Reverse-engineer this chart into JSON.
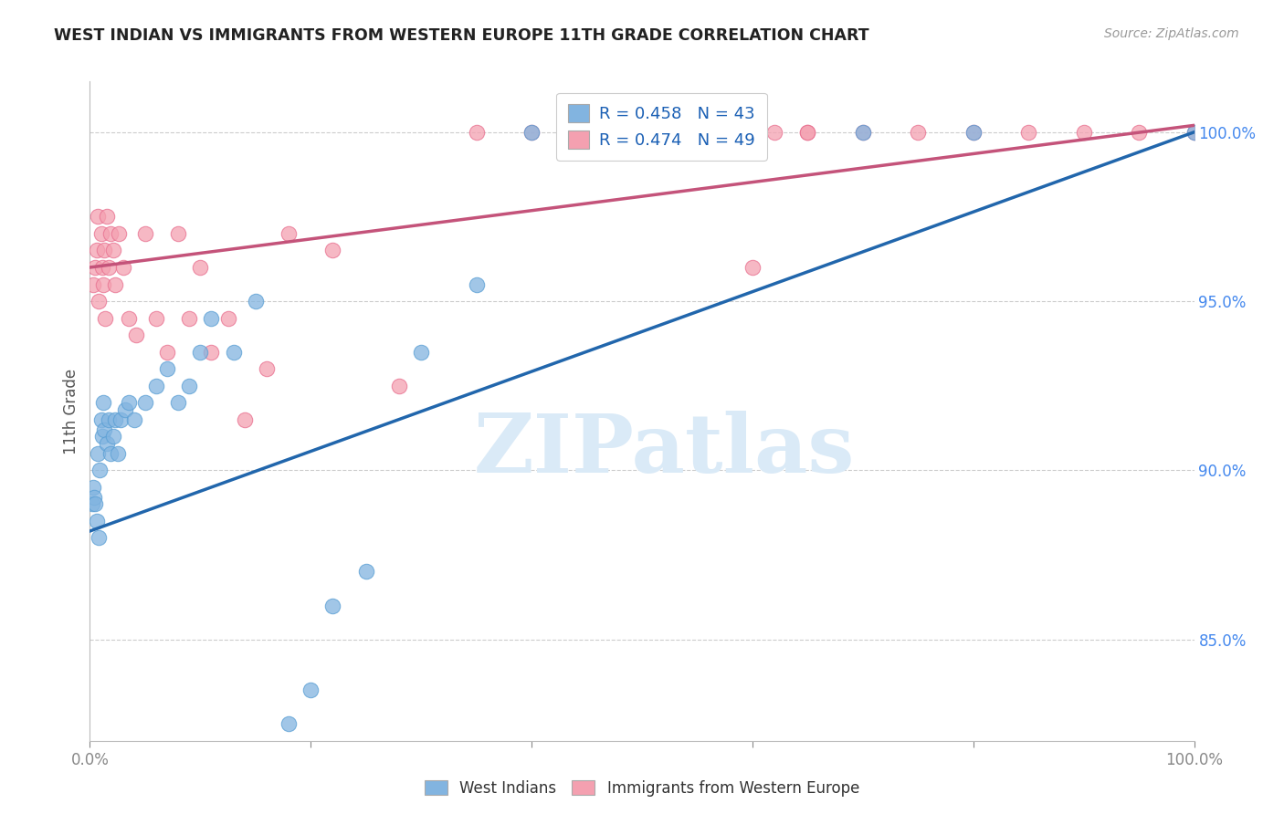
{
  "title": "WEST INDIAN VS IMMIGRANTS FROM WESTERN EUROPE 11TH GRADE CORRELATION CHART",
  "source": "Source: ZipAtlas.com",
  "ylabel": "11th Grade",
  "y_ticks": [
    85.0,
    90.0,
    95.0,
    100.0
  ],
  "y_tick_labels": [
    "85.0%",
    "90.0%",
    "95.0%",
    "100.0%"
  ],
  "x_range": [
    0.0,
    100.0
  ],
  "y_range": [
    82.0,
    101.5
  ],
  "blue_label": "West Indians",
  "pink_label": "Immigrants from Western Europe",
  "blue_R": 0.458,
  "blue_N": 43,
  "pink_R": 0.474,
  "pink_N": 49,
  "blue_color": "#82b4e0",
  "pink_color": "#f4a0b0",
  "blue_edge_color": "#5a9fd4",
  "pink_edge_color": "#e87090",
  "blue_line_color": "#2166ac",
  "pink_line_color": "#c4537a",
  "watermark_color": "#daeaf7",
  "blue_line_x0": 0.0,
  "blue_line_y0": 88.2,
  "blue_line_x1": 100.0,
  "blue_line_y1": 100.0,
  "pink_line_x0": 0.0,
  "pink_line_y0": 96.0,
  "pink_line_x1": 100.0,
  "pink_line_y1": 100.2,
  "blue_x": [
    0.2,
    0.3,
    0.4,
    0.5,
    0.6,
    0.7,
    0.8,
    0.9,
    1.0,
    1.1,
    1.2,
    1.3,
    1.5,
    1.7,
    1.9,
    2.1,
    2.3,
    2.5,
    2.8,
    3.2,
    3.5,
    4.0,
    5.0,
    6.0,
    7.0,
    8.0,
    9.0,
    10.0,
    11.0,
    13.0,
    15.0,
    18.0,
    20.0,
    22.0,
    25.0,
    30.0,
    35.0,
    40.0,
    50.0,
    60.0,
    70.0,
    80.0,
    100.0
  ],
  "blue_y": [
    89.0,
    89.5,
    89.2,
    89.0,
    88.5,
    90.5,
    88.0,
    90.0,
    91.5,
    91.0,
    92.0,
    91.2,
    90.8,
    91.5,
    90.5,
    91.0,
    91.5,
    90.5,
    91.5,
    91.8,
    92.0,
    91.5,
    92.0,
    92.5,
    93.0,
    92.0,
    92.5,
    93.5,
    94.5,
    93.5,
    95.0,
    82.5,
    83.5,
    86.0,
    87.0,
    93.5,
    95.5,
    100.0,
    100.0,
    100.0,
    100.0,
    100.0,
    100.0
  ],
  "pink_x": [
    0.3,
    0.5,
    0.6,
    0.7,
    0.8,
    1.0,
    1.1,
    1.2,
    1.3,
    1.4,
    1.5,
    1.7,
    1.9,
    2.1,
    2.3,
    2.6,
    3.0,
    3.5,
    4.2,
    5.0,
    6.0,
    7.0,
    8.0,
    9.0,
    10.0,
    11.0,
    12.5,
    14.0,
    16.0,
    18.0,
    22.0,
    28.0,
    35.0,
    40.0,
    45.0,
    50.0,
    55.0,
    60.0,
    65.0,
    70.0,
    75.0,
    80.0,
    85.0,
    90.0,
    95.0,
    100.0,
    60.0,
    65.0,
    62.0
  ],
  "pink_y": [
    95.5,
    96.0,
    96.5,
    97.5,
    95.0,
    97.0,
    96.0,
    95.5,
    96.5,
    94.5,
    97.5,
    96.0,
    97.0,
    96.5,
    95.5,
    97.0,
    96.0,
    94.5,
    94.0,
    97.0,
    94.5,
    93.5,
    97.0,
    94.5,
    96.0,
    93.5,
    94.5,
    91.5,
    93.0,
    97.0,
    96.5,
    92.5,
    100.0,
    100.0,
    100.0,
    100.0,
    100.0,
    100.0,
    100.0,
    100.0,
    100.0,
    100.0,
    100.0,
    100.0,
    100.0,
    100.0,
    96.0,
    100.0,
    100.0
  ]
}
